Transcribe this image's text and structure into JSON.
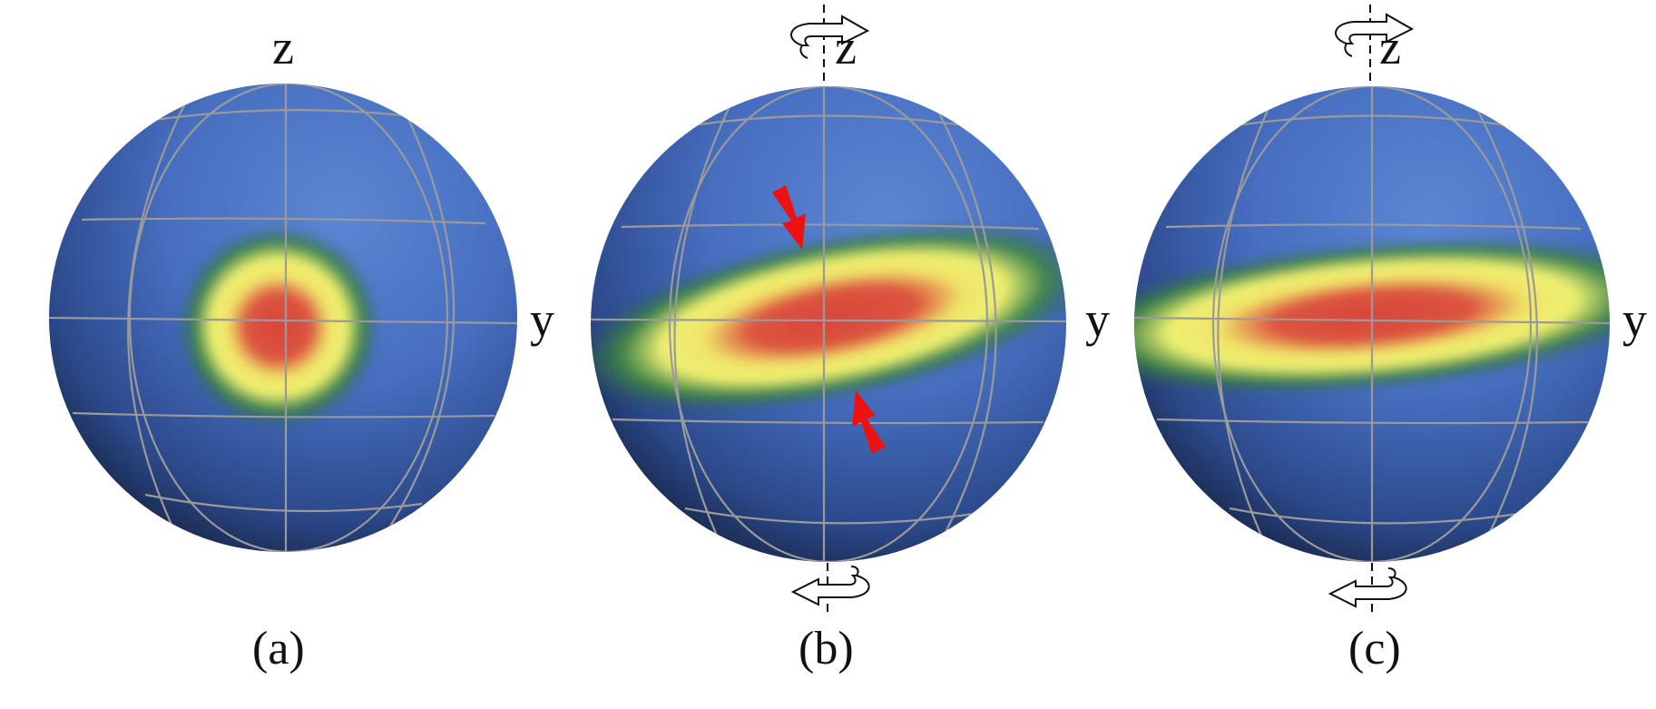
{
  "panels": [
    {
      "id": "a",
      "caption": "(a)",
      "axis_z": "z",
      "axis_y": "y",
      "rotation_arrows": false,
      "squeeze_arrows": false
    },
    {
      "id": "b",
      "caption": "(b)",
      "axis_z": "z",
      "axis_y": "y",
      "rotation_arrows": true,
      "squeeze_arrows": true
    },
    {
      "id": "c",
      "caption": "(c)",
      "axis_z": "z",
      "axis_y": "y",
      "rotation_arrows": true,
      "squeeze_arrows": false
    }
  ],
  "colors": {
    "sphere_light": "#5a82d0",
    "sphere_mid": "#3f62b0",
    "sphere_dark": "#15203e",
    "gridline": "#9a9a9a",
    "dist_red": "#d94a3c",
    "dist_yellow": "#f3f06a",
    "dist_green": "#2f7a2f",
    "arrow_red": "#ee1111"
  },
  "icons": [
    "rotation-arrow-icon",
    "squeeze-arrow-icon"
  ]
}
